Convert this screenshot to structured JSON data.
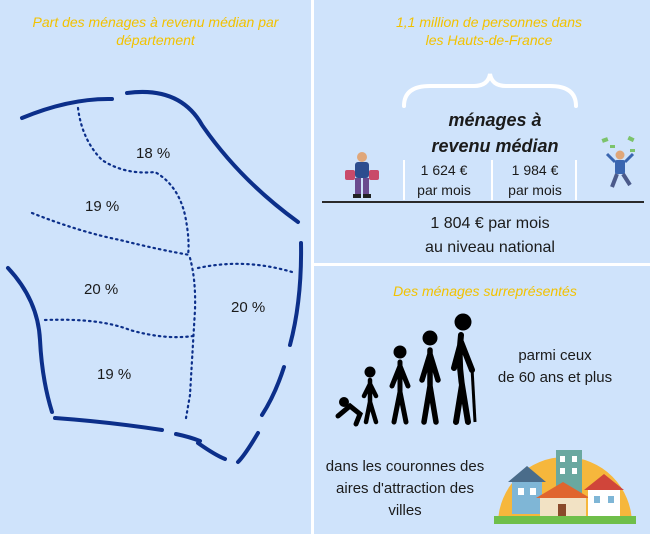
{
  "left_panel": {
    "title": "Part des ménages à revenu médian par département",
    "regions": [
      {
        "name": "north",
        "value": "18 %"
      },
      {
        "name": "west-upper",
        "value": "19 %"
      },
      {
        "name": "west-middle",
        "value": "20 %"
      },
      {
        "name": "east",
        "value": "20 %"
      },
      {
        "name": "south-west",
        "value": "19 %"
      }
    ]
  },
  "top_right": {
    "title": "1,1 million de personnes dans les Hauts-de-France",
    "headline_line1": "ménages à",
    "headline_line2": "revenu médian",
    "low_income": "1 624 €",
    "low_income_unit": "par mois",
    "high_income": "1 984 €",
    "high_income_unit": "par mois",
    "national_line1": "1 804 € par mois",
    "national_line2": "au niveau national"
  },
  "bottom_right": {
    "title": "Des ménages surreprésentés",
    "age_text_line1": "parmi ceux",
    "age_text_line2": "de 60 ans et plus",
    "urban_text_line1": "dans les couronnes des",
    "urban_text_line2": "aires d'attraction des",
    "urban_text_line3": "villes"
  },
  "colors": {
    "background": "#cfe3fb",
    "accent_yellow": "#f2c200",
    "map_blue": "#0c2f8a"
  }
}
